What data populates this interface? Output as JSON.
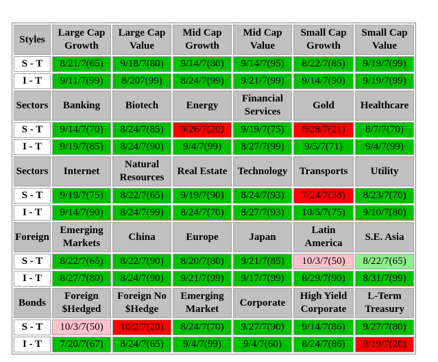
{
  "colors": {
    "green": "#00c000",
    "red": "#ff0000",
    "pink": "#ffc0cb",
    "lightgreen": "#90ee90",
    "header_gray": "#c0c0c0"
  },
  "sections": [
    {
      "label": "Styles",
      "headers": [
        "Large Cap Growth",
        "Large Cap Value",
        "Mid Cap Growth",
        "Mid Cap Value",
        "Small Cap Growth",
        "Small Cap Value"
      ],
      "rows": [
        {
          "label": "S - T",
          "cells": [
            {
              "v": "8/21/7(65)",
              "c": "green"
            },
            {
              "v": "9/18/7(80)",
              "c": "green"
            },
            {
              "v": "9/14/7(80)",
              "c": "green"
            },
            {
              "v": "9/14/7(95)",
              "c": "green"
            },
            {
              "v": "8/22/7(85)",
              "c": "green"
            },
            {
              "v": "9/19/7(99)",
              "c": "green"
            }
          ]
        },
        {
          "label": "I - T",
          "cells": [
            {
              "v": "9/11/7(99)",
              "c": "green"
            },
            {
              "v": "8/207(99)",
              "c": "green"
            },
            {
              "v": "8/24/7(99)",
              "c": "green"
            },
            {
              "v": "9/21/7(99)",
              "c": "green"
            },
            {
              "v": "9/14/7(90)",
              "c": "green"
            },
            {
              "v": "9/19/7(99)",
              "c": "green"
            }
          ]
        }
      ]
    },
    {
      "label": "Sectors",
      "headers": [
        "Banking",
        "Biotech",
        "Energy",
        "Financial Services",
        "Gold",
        "Healthcare"
      ],
      "rows": [
        {
          "label": "S - T",
          "cells": [
            {
              "v": "9/14/7(70)",
              "c": "green"
            },
            {
              "v": "8/24/7(85)",
              "c": "green"
            },
            {
              "v": "9/26/7(20)",
              "c": "red"
            },
            {
              "v": "9/19/7(75)",
              "c": "green"
            },
            {
              "v": "9/28/7(21)",
              "c": "red"
            },
            {
              "v": "8/7/7(70)",
              "c": "green"
            }
          ]
        },
        {
          "label": "I - T",
          "cells": [
            {
              "v": "9/19/7(85)",
              "c": "green"
            },
            {
              "v": "8/24/7(90)",
              "c": "green"
            },
            {
              "v": "9/4/7(99)",
              "c": "green"
            },
            {
              "v": "8/27/7(99)",
              "c": "green"
            },
            {
              "v": "9/5/7(71)",
              "c": "green"
            },
            {
              "v": "9/4/7(99)",
              "c": "green"
            }
          ]
        }
      ]
    },
    {
      "label": "Sectors",
      "headers": [
        "Internet",
        "Natural Resources",
        "Real Estate",
        "Technology",
        "Transports",
        "Utility"
      ],
      "rows": [
        {
          "label": "S - T",
          "cells": [
            {
              "v": "9/19/7(75)",
              "c": "green"
            },
            {
              "v": "8/22/7(65)",
              "c": "green"
            },
            {
              "v": "9/19/7(90)",
              "c": "green"
            },
            {
              "v": "8/24/7(93)",
              "c": "green"
            },
            {
              "v": "7/24/7(38)",
              "c": "red"
            },
            {
              "v": "8/23/7(70)",
              "c": "green"
            }
          ]
        },
        {
          "label": "I - T",
          "cells": [
            {
              "v": "9/14/7(90)",
              "c": "green"
            },
            {
              "v": "8/24/7(99)",
              "c": "green"
            },
            {
              "v": "8/24/7(70)",
              "c": "green"
            },
            {
              "v": "8/27/7(93)",
              "c": "green"
            },
            {
              "v": "10/5/7(75)",
              "c": "green"
            },
            {
              "v": "9/10/7(80)",
              "c": "green"
            }
          ]
        }
      ]
    },
    {
      "label": "Foreign",
      "headers": [
        "Emerging Markets",
        "China",
        "Europe",
        "Japan",
        "Latin America",
        "S.E. Asia"
      ],
      "rows": [
        {
          "label": "S - T",
          "cells": [
            {
              "v": "8/22/7(65)",
              "c": "green"
            },
            {
              "v": "8/22/7(90)",
              "c": "green"
            },
            {
              "v": "8/20/7(80)",
              "c": "green"
            },
            {
              "v": "9/21/7(85)",
              "c": "green"
            },
            {
              "v": "10/3/7(50)",
              "c": "pink"
            },
            {
              "v": "8/22/7(65)",
              "c": "lightgreen"
            }
          ]
        },
        {
          "label": "I - T",
          "cells": [
            {
              "v": "8/27/7(80)",
              "c": "green"
            },
            {
              "v": "8/24/7(90)",
              "c": "green"
            },
            {
              "v": "9/21/7(99)",
              "c": "green"
            },
            {
              "v": "9/17/7(99)",
              "c": "green"
            },
            {
              "v": "8/29/7(90)",
              "c": "green"
            },
            {
              "v": "8/31/7(99)",
              "c": "green"
            }
          ]
        }
      ]
    },
    {
      "label": "Bonds",
      "headers": [
        "Foreign $Hedged",
        "Foreign No $Hedge",
        "Emerging Market",
        "Corporate",
        "High Yield Corporate",
        "L-Term Treasury"
      ],
      "rows": [
        {
          "label": "S - T",
          "cells": [
            {
              "v": "10/3/7(50)",
              "c": "pink"
            },
            {
              "v": "10/2/7(20)",
              "c": "red"
            },
            {
              "v": "8/24/7(70)",
              "c": "green"
            },
            {
              "v": "9/27/7(90)",
              "c": "green"
            },
            {
              "v": "9/14/7(86)",
              "c": "green"
            },
            {
              "v": "9/27/7(80)",
              "c": "green"
            }
          ]
        },
        {
          "label": "I - T",
          "cells": [
            {
              "v": "7/20/7(67)",
              "c": "green"
            },
            {
              "v": "8/24/7(65)",
              "c": "green"
            },
            {
              "v": "9/4/7(99)",
              "c": "green"
            },
            {
              "v": "9/4/7(60)",
              "c": "green"
            },
            {
              "v": "8/24/7(86)",
              "c": "green"
            },
            {
              "v": "9/19/7(20)",
              "c": "red"
            }
          ]
        }
      ]
    }
  ]
}
